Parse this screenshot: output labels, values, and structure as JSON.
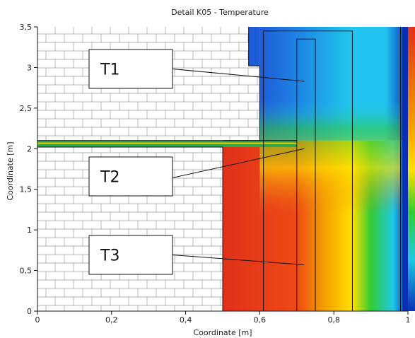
{
  "chart_data": {
    "type": "heatmap",
    "title": "Detail K05 - Temperature",
    "xlabel": "Coordinate [m]",
    "ylabel": "Coordinate [m]",
    "xlim": [
      0,
      1
    ],
    "ylim": [
      0,
      3.5
    ],
    "x_ticks": [
      {
        "value": 0,
        "label": "0"
      },
      {
        "value": 0.2,
        "label": "0,2"
      },
      {
        "value": 0.4,
        "label": "0,4"
      },
      {
        "value": 0.6,
        "label": "0,6"
      },
      {
        "value": 0.8,
        "label": "0,8"
      },
      {
        "value": 1,
        "label": "1"
      }
    ],
    "y_ticks": [
      {
        "value": 0,
        "label": "0"
      },
      {
        "value": 0.5,
        "label": "0,5"
      },
      {
        "value": 1,
        "label": "1"
      },
      {
        "value": 1.5,
        "label": "1,5"
      },
      {
        "value": 2,
        "label": "2"
      },
      {
        "value": 2.5,
        "label": "2,5"
      },
      {
        "value": 3,
        "label": "3"
      },
      {
        "value": 3.5,
        "label": "3,5"
      }
    ],
    "colors": {
      "hot": "#e0301a",
      "warm": "#f5a000",
      "mild": "#ffe000",
      "cool": "#33cc33",
      "cold": "#1ec8e6",
      "coldest": "#0a2fb5"
    },
    "callouts": [
      {
        "label": "T1",
        "point": [
          0.72,
          2.83
        ]
      },
      {
        "label": "T2",
        "point": [
          0.72,
          2.0
        ]
      },
      {
        "label": "T3",
        "point": [
          0.72,
          0.57
        ]
      }
    ]
  }
}
